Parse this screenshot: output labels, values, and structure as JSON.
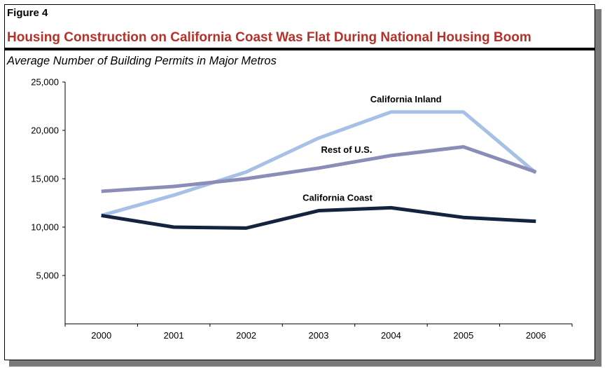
{
  "figure_label": "Figure 4",
  "title": "Housing Construction on California Coast Was Flat During National Housing Boom",
  "subtitle": "Average Number of Building Permits in Major Metros",
  "chart_data": {
    "type": "line",
    "title": "Housing Construction on California Coast Was Flat During National Housing Boom",
    "subtitle": "Average Number of Building Permits in Major Metros",
    "xlabel": "",
    "ylabel": "",
    "x": [
      "2000",
      "2001",
      "2002",
      "2003",
      "2004",
      "2005",
      "2006"
    ],
    "ylim": [
      0,
      25000
    ],
    "yticks": [
      5000,
      10000,
      15000,
      20000,
      25000
    ],
    "ytick_labels": [
      "5,000",
      "10,000",
      "15,000",
      "20,000",
      "25,000"
    ],
    "grid": false,
    "series": [
      {
        "name": "California Inland",
        "color": "#a6c0e6",
        "values": [
          11200,
          13300,
          15700,
          19200,
          21900,
          21900,
          15600
        ]
      },
      {
        "name": "Rest of U.S.",
        "color": "#8c8cb9",
        "values": [
          13700,
          14200,
          15000,
          16100,
          17400,
          18300,
          15700
        ]
      },
      {
        "name": "California Coast",
        "color": "#142440",
        "values": [
          11200,
          10000,
          9900,
          11700,
          12000,
          11000,
          10600
        ]
      }
    ]
  }
}
